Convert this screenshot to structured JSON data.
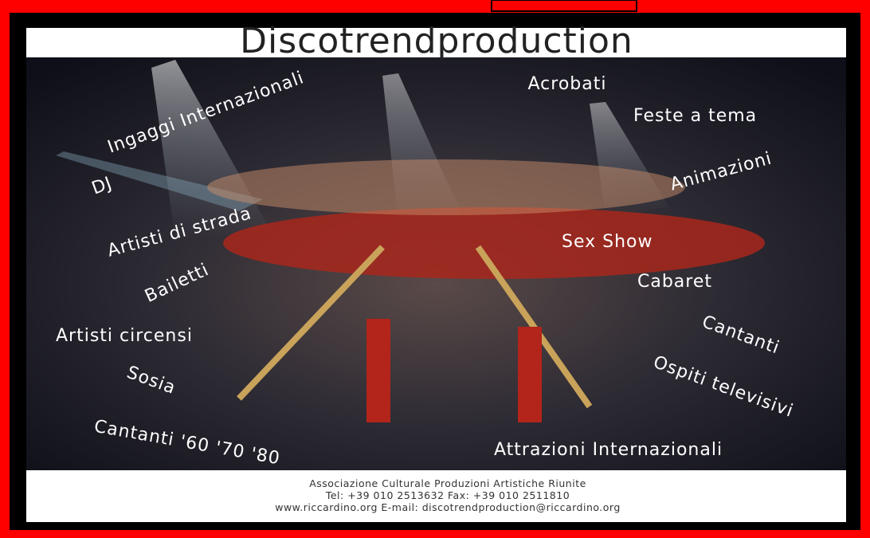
{
  "header": {
    "title": "Discotrendproduction"
  },
  "poster": {
    "services": [
      "Ingaggi Internazionali",
      "Acrobati",
      "Feste a tema",
      "DJ",
      "Animazioni",
      "Artisti di strada",
      "Sex Show",
      "Bailetti",
      "Cabaret",
      "Artisti circensi",
      "Cantanti",
      "Sosia",
      "Ospiti televisivi",
      "Cantanti '60 '70 '80",
      "Attrazioni Internazionali"
    ]
  },
  "footer": {
    "lines": [
      "Associazione Culturale Produzioni Artistiche Riunite",
      "Tel: +39 010 2513632   Fax: +39 010 2511810",
      "www.riccardino.org   E-mail: discotrendproduction@riccardino.org"
    ]
  }
}
